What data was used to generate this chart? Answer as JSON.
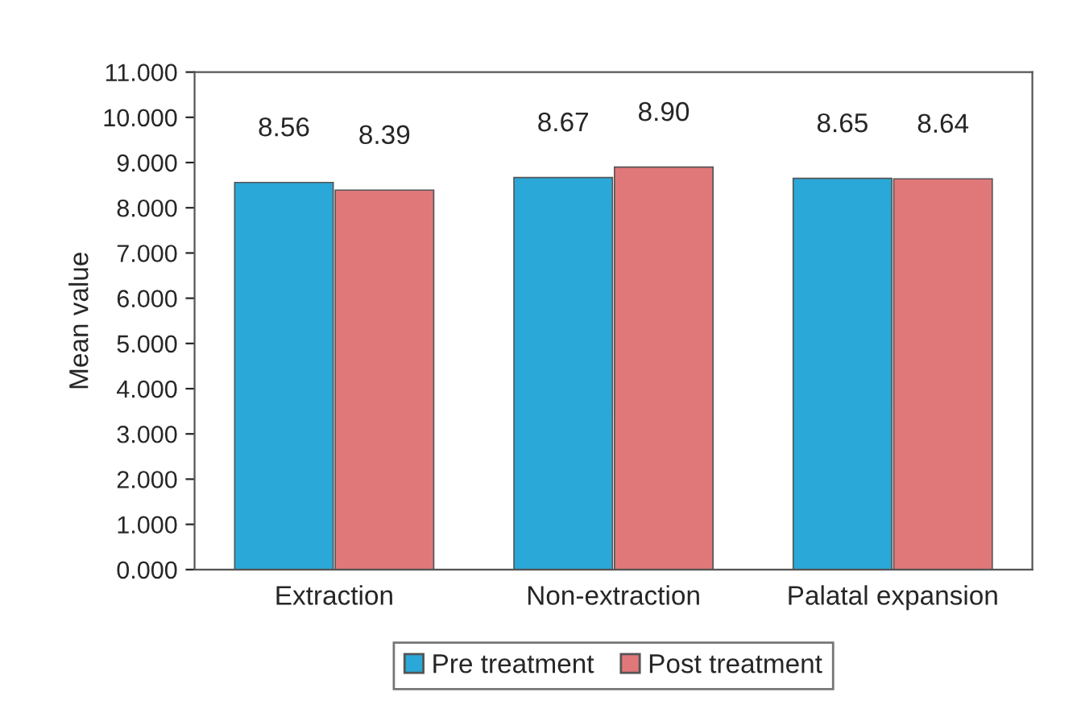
{
  "chart_data": {
    "type": "bar",
    "ylabel": "Mean value",
    "categories": [
      "Extraction",
      "Non-extraction",
      "Palatal expansion"
    ],
    "series": [
      {
        "name": "Pre treatment",
        "color": "#2aa8d8",
        "values": [
          8.56,
          8.67,
          8.65
        ],
        "value_labels": [
          "8.56",
          "8.67",
          "8.65"
        ]
      },
      {
        "name": "Post treatment",
        "color": "#e0787a",
        "values": [
          8.39,
          8.9,
          8.64
        ],
        "value_labels": [
          "8.39",
          "8.90",
          "8.64"
        ]
      }
    ],
    "ylim": [
      0,
      11
    ],
    "yticks": [
      {
        "value": 0,
        "label": "0.000"
      },
      {
        "value": 1,
        "label": "1.000"
      },
      {
        "value": 2,
        "label": "2.000"
      },
      {
        "value": 3,
        "label": "3.000"
      },
      {
        "value": 4,
        "label": "4.000"
      },
      {
        "value": 5,
        "label": "5.000"
      },
      {
        "value": 6,
        "label": "6.000"
      },
      {
        "value": 7,
        "label": "7.000"
      },
      {
        "value": 8,
        "label": "8.000"
      },
      {
        "value": 9,
        "label": "9.000"
      },
      {
        "value": 10,
        "label": "10.000"
      },
      {
        "value": 11,
        "label": "11.000"
      }
    ],
    "legend": "bottom",
    "grid": false
  }
}
